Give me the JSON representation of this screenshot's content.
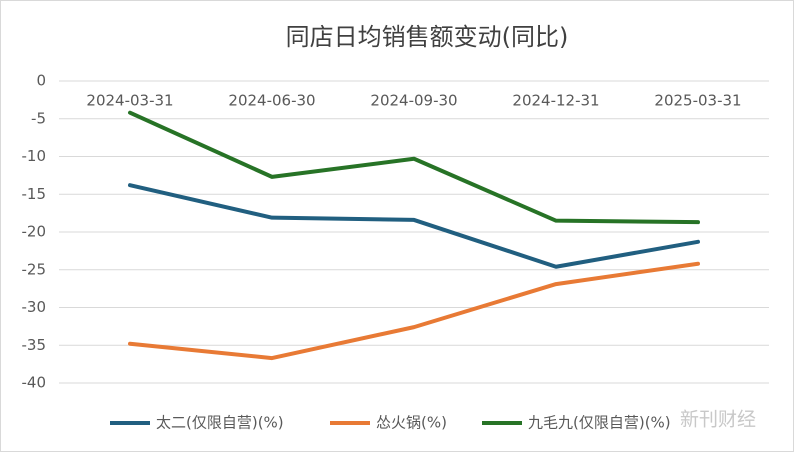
{
  "chart_data": {
    "type": "line",
    "title": "同店日均销售额变动(同比)",
    "categories": [
      "2024-03-31",
      "2024-06-30",
      "2024-09-30",
      "2024-12-31",
      "2025-03-31"
    ],
    "series": [
      {
        "name": "太二(仅限自营)(%)",
        "color": "#215f80",
        "values": [
          -13.8,
          -18.1,
          -18.4,
          -24.6,
          -21.3
        ]
      },
      {
        "name": "怂火锅(%)",
        "color": "#e87a35",
        "values": [
          -34.8,
          -36.7,
          -32.6,
          -26.9,
          -24.2
        ]
      },
      {
        "name": "九毛九(仅限自营)(%)",
        "color": "#277326",
        "values": [
          -4.2,
          -12.7,
          -10.3,
          -18.5,
          -18.7
        ]
      }
    ],
    "ylim": [
      -40,
      0
    ],
    "yticks": [
      0,
      -5,
      -10,
      -15,
      -20,
      -25,
      -30,
      -35,
      -40
    ],
    "grid": true,
    "legend": "bottom",
    "watermark": "新刊财经"
  }
}
